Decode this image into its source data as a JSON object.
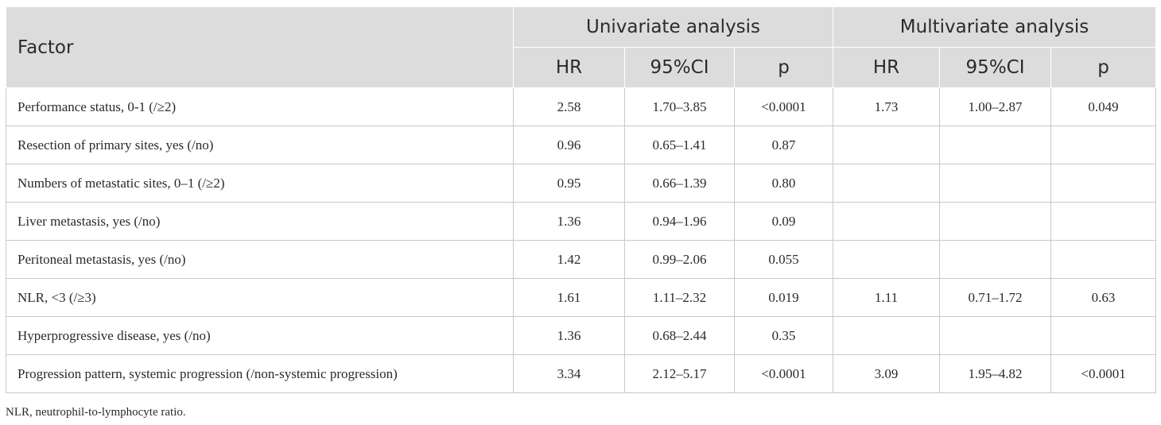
{
  "table": {
    "header": {
      "factor": "Factor",
      "univariate": "Univariate analysis",
      "multivariate": "Multivariate analysis",
      "sub": [
        "HR",
        "95%CI",
        "p",
        "HR",
        "95%CI",
        "p"
      ]
    },
    "rows": [
      {
        "factor": "Performance status, 0-1 (/≥2)",
        "cells": [
          "2.58",
          "1.70–3.85",
          "<0.0001",
          "1.73",
          "1.00–2.87",
          "0.049"
        ]
      },
      {
        "factor": "Resection of primary sites, yes (/no)",
        "cells": [
          "0.96",
          "0.65–1.41",
          "0.87",
          "",
          "",
          ""
        ]
      },
      {
        "factor": "Numbers of metastatic sites, 0–1 (/≥2)",
        "cells": [
          "0.95",
          "0.66–1.39",
          "0.80",
          "",
          "",
          ""
        ]
      },
      {
        "factor": "Liver metastasis, yes (/no)",
        "cells": [
          "1.36",
          "0.94–1.96",
          "0.09",
          "",
          "",
          ""
        ]
      },
      {
        "factor": "Peritoneal metastasis, yes (/no)",
        "cells": [
          "1.42",
          "0.99–2.06",
          "0.055",
          "",
          "",
          ""
        ]
      },
      {
        "factor": "NLR, <3 (/≥3)",
        "cells": [
          "1.61",
          "1.11–2.32",
          "0.019",
          "1.11",
          "0.71–1.72",
          "0.63"
        ]
      },
      {
        "factor": "Hyperprogressive disease, yes (/no)",
        "cells": [
          "1.36",
          "0.68–2.44",
          "0.35",
          "",
          "",
          ""
        ]
      },
      {
        "factor": "Progression pattern, systemic progression (/non-systemic progression)",
        "cells": [
          "3.34",
          "2.12–5.17",
          "<0.0001",
          "3.09",
          "1.95–4.82",
          "<0.0001"
        ]
      }
    ]
  },
  "footnote": "NLR, neutrophil-to-lymphocyte ratio.",
  "colors": {
    "header_bg": "#dcdcdc",
    "border": "#c8c8c8",
    "text": "#2a2a2a"
  }
}
